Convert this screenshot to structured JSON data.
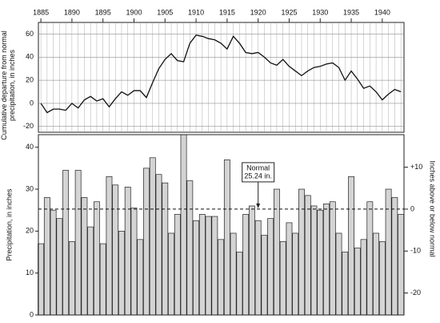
{
  "chart_data": [
    {
      "type": "line",
      "ylabel": [
        "Cumulative departure from normal",
        "precipitation, in inches"
      ],
      "x": [
        1885,
        1886,
        1887,
        1888,
        1889,
        1890,
        1891,
        1892,
        1893,
        1894,
        1895,
        1896,
        1897,
        1898,
        1899,
        1900,
        1901,
        1902,
        1903,
        1904,
        1905,
        1906,
        1907,
        1908,
        1909,
        1910,
        1911,
        1912,
        1913,
        1914,
        1915,
        1916,
        1917,
        1918,
        1919,
        1920,
        1921,
        1922,
        1923,
        1924,
        1925,
        1926,
        1927,
        1928,
        1929,
        1930,
        1931,
        1932,
        1933,
        1934,
        1935,
        1936,
        1937,
        1938,
        1939,
        1940,
        1941,
        1942,
        1943
      ],
      "values": [
        0,
        -8,
        -5,
        -5,
        -6,
        0,
        -4,
        3,
        6,
        2,
        4,
        -3,
        4,
        10,
        7,
        11,
        11,
        5,
        18,
        30,
        38,
        43,
        37,
        36,
        52,
        59,
        58,
        56,
        55,
        52,
        47,
        58,
        52,
        44,
        43,
        44,
        40,
        35,
        33,
        38,
        32,
        28,
        24,
        28,
        31,
        32,
        34,
        35,
        31,
        20,
        28,
        21,
        13,
        15,
        10,
        3,
        8,
        12,
        10
      ],
      "color": "#111",
      "xlim": [
        1884.6,
        1943.5
      ],
      "xticks": [
        1885,
        1890,
        1895,
        1900,
        1905,
        1910,
        1915,
        1920,
        1925,
        1930,
        1935,
        1940
      ],
      "ylim": [
        -25,
        70
      ],
      "yticks": [
        60,
        40,
        20,
        0,
        -20
      ],
      "grid": true
    },
    {
      "type": "bar",
      "ylabel": "Precipitation, in inches",
      "y2label": "Inches above or below normal",
      "values": [
        17,
        28,
        25,
        23,
        34.5,
        17.5,
        34.5,
        28,
        21,
        27,
        17,
        33,
        31,
        20,
        30.5,
        25.5,
        18,
        35,
        37.5,
        33.5,
        31.5,
        19.5,
        24,
        43,
        32,
        22.5,
        24,
        23.5,
        23.5,
        18,
        37,
        19.5,
        15,
        24,
        26,
        22.5,
        19,
        23,
        30,
        17.5,
        22,
        19.5,
        30,
        28.5,
        26,
        25,
        26.5,
        27,
        19.5,
        15,
        33,
        16,
        18,
        27,
        19.5,
        17.5,
        30,
        28,
        24
      ],
      "color": "#d4d4d4",
      "xlim": [
        1884.6,
        1943.5
      ],
      "ylim": [
        0,
        43
      ],
      "yticks": [
        0,
        10,
        20,
        30,
        40
      ],
      "y2lim": [
        -25.24,
        17.76
      ],
      "y2ticks": [
        {
          "value": 10,
          "label": "+10"
        },
        0,
        -10,
        -20
      ],
      "normal": 25.24,
      "annotation": [
        "Normal",
        "25.24 in."
      ]
    }
  ]
}
